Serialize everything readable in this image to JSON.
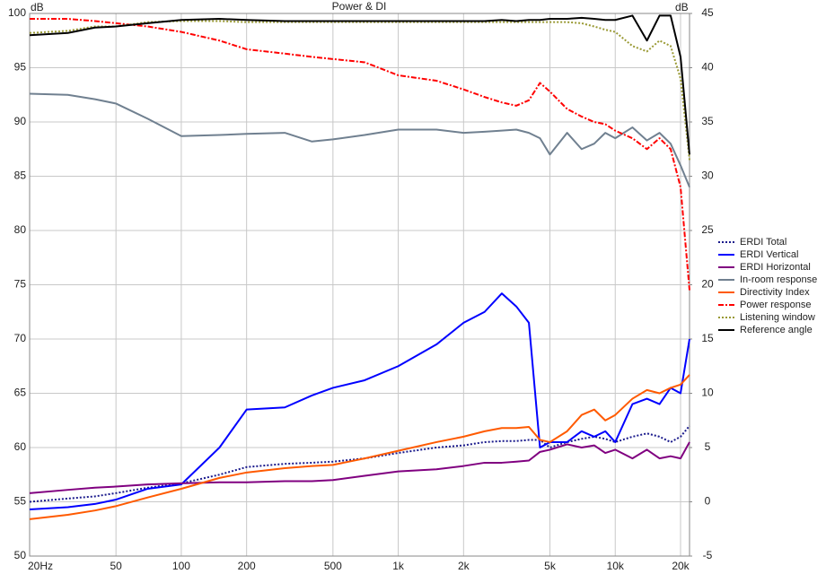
{
  "chart_data": {
    "type": "line",
    "title": "Power & DI",
    "y_label": "dB",
    "y2_label": "dB",
    "log_x": true,
    "grid": true,
    "legend": "right",
    "xlim": [
      20,
      22000
    ],
    "xticks": [
      {
        "value": 20,
        "label": "20Hz"
      },
      50,
      100,
      200,
      500,
      {
        "value": 1000,
        "label": "1k"
      },
      {
        "value": 2000,
        "label": "2k"
      },
      {
        "value": 5000,
        "label": "5k"
      },
      {
        "value": 10000,
        "label": "10k"
      },
      {
        "value": 20000,
        "label": "20k"
      }
    ],
    "ylim": [
      50,
      100
    ],
    "yticks": [
      50,
      55,
      60,
      65,
      70,
      75,
      80,
      85,
      90,
      95,
      100
    ],
    "y2lim": [
      -5,
      45
    ],
    "y2ticks": [
      -5,
      0,
      5,
      10,
      15,
      20,
      25,
      30,
      35,
      40,
      45
    ],
    "x": [
      20,
      30,
      40,
      50,
      70,
      100,
      150,
      200,
      300,
      400,
      500,
      700,
      1000,
      1500,
      2000,
      2500,
      3000,
      3500,
      4000,
      4500,
      5000,
      6000,
      7000,
      8000,
      9000,
      10000,
      12000,
      14000,
      16000,
      18000,
      20000,
      22000
    ],
    "series": [
      {
        "name": "ERDI Total",
        "color": "#1a1a8c",
        "dash": "dotted",
        "axis": "y2",
        "values": [
          0,
          0.3,
          0.5,
          0.8,
          1.3,
          1.7,
          2.5,
          3.2,
          3.5,
          3.6,
          3.7,
          4,
          4.5,
          5,
          5.2,
          5.5,
          5.6,
          5.6,
          5.7,
          5.7,
          5,
          5.5,
          5.8,
          6,
          5.8,
          5.5,
          6,
          6.3,
          6,
          5.5,
          6,
          7
        ]
      },
      {
        "name": "ERDI Vertical",
        "color": "#0000ff",
        "dash": "solid",
        "axis": "y2",
        "values": [
          -0.7,
          -0.5,
          -0.2,
          0.2,
          1.2,
          1.6,
          5,
          8.5,
          8.7,
          9.8,
          10.5,
          11.2,
          12.5,
          14.5,
          16.5,
          17.5,
          19.2,
          18,
          16.5,
          5,
          5.5,
          5.5,
          6.5,
          6,
          6.5,
          5.5,
          9,
          9.5,
          9,
          10.5,
          10,
          15
        ]
      },
      {
        "name": "ERDI Horizontal",
        "color": "#800080",
        "dash": "solid",
        "axis": "y2",
        "values": [
          0.8,
          1.1,
          1.3,
          1.4,
          1.6,
          1.7,
          1.8,
          1.8,
          1.9,
          1.9,
          2,
          2.4,
          2.8,
          3,
          3.3,
          3.6,
          3.6,
          3.7,
          3.8,
          4.6,
          4.8,
          5.3,
          5,
          5.2,
          4.5,
          4.8,
          4,
          4.8,
          4,
          4.2,
          4,
          5.5
        ]
      },
      {
        "name": "In-room response",
        "color": "#708090",
        "dash": "solid",
        "values": [
          92.6,
          92.5,
          92.1,
          91.7,
          90.3,
          88.7,
          88.8,
          88.9,
          89,
          88.2,
          88.4,
          88.8,
          89.3,
          89.3,
          89,
          89.1,
          89.2,
          89.3,
          89,
          88.5,
          87,
          89,
          87.5,
          88,
          89,
          88.5,
          89.5,
          88.3,
          89,
          88,
          86,
          84
        ]
      },
      {
        "name": "Directivity Index",
        "color": "#ff5a00",
        "dash": "solid",
        "axis": "y2",
        "values": [
          -1.6,
          -1.2,
          -0.8,
          -0.4,
          0.4,
          1.2,
          2.2,
          2.7,
          3.1,
          3.3,
          3.4,
          4,
          4.7,
          5.5,
          6,
          6.5,
          6.8,
          6.8,
          6.9,
          5.7,
          5.5,
          6.5,
          8,
          8.5,
          7.5,
          8,
          9.5,
          10.3,
          10,
          10.5,
          10.8,
          11.7
        ]
      },
      {
        "name": "Power response",
        "color": "#ff0000",
        "dash": "dashdot",
        "values": [
          99.5,
          99.5,
          99.3,
          99.1,
          98.8,
          98.3,
          97.5,
          96.7,
          96.3,
          96,
          95.8,
          95.5,
          94.3,
          93.8,
          93,
          92.3,
          91.8,
          91.5,
          92,
          93.6,
          92.8,
          91.2,
          90.5,
          90,
          89.8,
          89.2,
          88.5,
          87.5,
          88.5,
          87.5,
          84,
          74.5
        ]
      },
      {
        "name": "Listening window",
        "color": "#999933",
        "dash": "dotted",
        "values": [
          98.2,
          98.4,
          98.8,
          98.8,
          99.2,
          99.3,
          99.3,
          99.2,
          99.2,
          99.2,
          99.2,
          99.2,
          99.2,
          99.2,
          99.2,
          99.2,
          99.2,
          99.2,
          99.2,
          99.2,
          99.2,
          99.2,
          99.1,
          98.8,
          98.5,
          98.3,
          97,
          96.5,
          97.5,
          97,
          94,
          86.5
        ]
      },
      {
        "name": "Reference angle",
        "color": "#000000",
        "dash": "solid",
        "values": [
          98,
          98.2,
          98.7,
          98.8,
          99.1,
          99.4,
          99.5,
          99.4,
          99.3,
          99.3,
          99.3,
          99.3,
          99.3,
          99.3,
          99.3,
          99.3,
          99.4,
          99.3,
          99.4,
          99.4,
          99.5,
          99.5,
          99.6,
          99.5,
          99.4,
          99.4,
          99.8,
          97.5,
          99.8,
          99.8,
          96,
          87
        ]
      }
    ]
  }
}
